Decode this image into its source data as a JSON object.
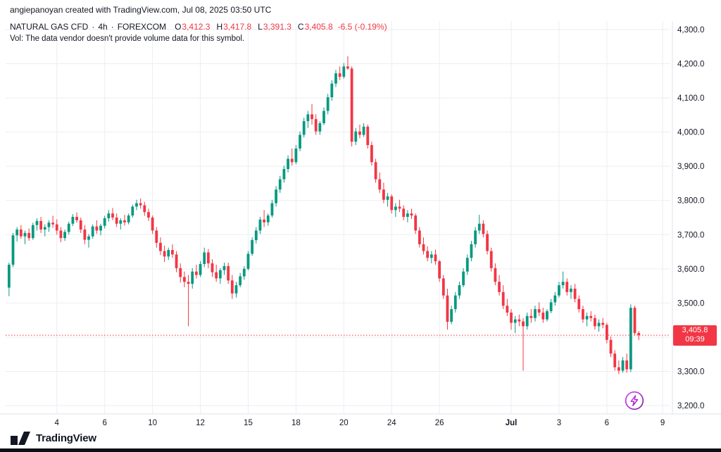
{
  "attribution": {
    "text": "angiepanoyan created with TradingView.com, Jul 08, 2025 03:50 UTC"
  },
  "header": {
    "symbol": "NATURAL GAS CFD",
    "sep": "·",
    "interval": "4h",
    "exchange": "FOREXCOM",
    "ohlc": {
      "o_label": "O",
      "o": "3,412.3",
      "h_label": "H",
      "h": "3,417.8",
      "l_label": "L",
      "l": "3,391.3",
      "c_label": "C",
      "c": "3,405.8",
      "change": "-6.5 (-0.19%)"
    },
    "vol_notice": "Vol: The data vendor doesn't provide volume data for this symbol."
  },
  "footer": {
    "logo_text": "TradingView"
  },
  "icons": {
    "watermark": "lightning-bolt-icon",
    "logo": "tradingview-logo"
  },
  "chart_data": {
    "type": "candlestick",
    "title": "NATURAL GAS CFD · 4h · FOREXCOM",
    "interval": "4h",
    "legend_position": "top-left",
    "grid": true,
    "y_axis": {
      "min": 3200,
      "max": 4300,
      "tick_step": 100,
      "ticks": [
        {
          "v": 4300,
          "label": "4,300.0"
        },
        {
          "v": 4200,
          "label": "4,200.0"
        },
        {
          "v": 4100,
          "label": "4,100.0"
        },
        {
          "v": 4000,
          "label": "4,000.0"
        },
        {
          "v": 3900,
          "label": "3,900.0"
        },
        {
          "v": 3800,
          "label": "3,800.0"
        },
        {
          "v": 3700,
          "label": "3,700.0"
        },
        {
          "v": 3600,
          "label": "3,600.0"
        },
        {
          "v": 3500,
          "label": "3,500.0"
        },
        {
          "v": 3400,
          "label": "3,400.0"
        },
        {
          "v": 3300,
          "label": "3,300.0"
        },
        {
          "v": 3200,
          "label": "3,200.0"
        }
      ]
    },
    "x_ticks": [
      {
        "label": "4",
        "i": 12
      },
      {
        "label": "6",
        "i": 24
      },
      {
        "label": "10",
        "i": 36
      },
      {
        "label": "12",
        "i": 48
      },
      {
        "label": "15",
        "i": 60
      },
      {
        "label": "18",
        "i": 72
      },
      {
        "label": "20",
        "i": 84
      },
      {
        "label": "24",
        "i": 96
      },
      {
        "label": "26",
        "i": 108
      },
      {
        "label": "Jul",
        "i": 126,
        "bold": true
      },
      {
        "label": "3",
        "i": 138
      },
      {
        "label": "6",
        "i": 150
      },
      {
        "label": "9",
        "i": 164
      }
    ],
    "current": {
      "price": 3405.8,
      "price_label": "3,405.8",
      "countdown": "09:39",
      "direction": "down"
    },
    "colors": {
      "up": "#089981",
      "down": "#F23645",
      "grid": "#ECEEF1",
      "axis_text": "#131722",
      "badge": "#F23645",
      "axis_border": "#E0E3EB"
    },
    "candles": [
      [
        3545,
        3618,
        3520,
        3612
      ],
      [
        3612,
        3705,
        3605,
        3698
      ],
      [
        3698,
        3722,
        3680,
        3715
      ],
      [
        3715,
        3728,
        3688,
        3695
      ],
      [
        3695,
        3712,
        3672,
        3705
      ],
      [
        3705,
        3718,
        3682,
        3690
      ],
      [
        3690,
        3735,
        3685,
        3728
      ],
      [
        3728,
        3748,
        3712,
        3740
      ],
      [
        3740,
        3752,
        3705,
        3715
      ],
      [
        3715,
        3730,
        3695,
        3722
      ],
      [
        3722,
        3742,
        3708,
        3735
      ],
      [
        3735,
        3755,
        3720,
        3730
      ],
      [
        3730,
        3745,
        3700,
        3712
      ],
      [
        3712,
        3722,
        3678,
        3690
      ],
      [
        3690,
        3715,
        3682,
        3708
      ],
      [
        3708,
        3738,
        3700,
        3732
      ],
      [
        3732,
        3760,
        3725,
        3752
      ],
      [
        3752,
        3765,
        3735,
        3742
      ],
      [
        3742,
        3750,
        3705,
        3715
      ],
      [
        3715,
        3728,
        3672,
        3685
      ],
      [
        3685,
        3702,
        3662,
        3695
      ],
      [
        3695,
        3730,
        3688,
        3724
      ],
      [
        3724,
        3742,
        3702,
        3712
      ],
      [
        3712,
        3732,
        3698,
        3726
      ],
      [
        3726,
        3755,
        3718,
        3748
      ],
      [
        3748,
        3772,
        3738,
        3762
      ],
      [
        3762,
        3778,
        3742,
        3750
      ],
      [
        3750,
        3762,
        3722,
        3732
      ],
      [
        3732,
        3748,
        3715,
        3742
      ],
      [
        3742,
        3758,
        3726,
        3736
      ],
      [
        3736,
        3762,
        3730,
        3756
      ],
      [
        3756,
        3788,
        3750,
        3782
      ],
      [
        3782,
        3802,
        3772,
        3792
      ],
      [
        3792,
        3806,
        3776,
        3786
      ],
      [
        3786,
        3796,
        3755,
        3766
      ],
      [
        3766,
        3776,
        3740,
        3750
      ],
      [
        3750,
        3756,
        3702,
        3712
      ],
      [
        3712,
        3722,
        3662,
        3676
      ],
      [
        3676,
        3692,
        3640,
        3652
      ],
      [
        3652,
        3668,
        3620,
        3636
      ],
      [
        3636,
        3662,
        3626,
        3655
      ],
      [
        3655,
        3672,
        3632,
        3642
      ],
      [
        3642,
        3652,
        3590,
        3602
      ],
      [
        3602,
        3616,
        3560,
        3576
      ],
      [
        3576,
        3592,
        3546,
        3562
      ],
      [
        3562,
        3582,
        3432,
        3556
      ],
      [
        3556,
        3602,
        3542,
        3592
      ],
      [
        3592,
        3612,
        3572,
        3582
      ],
      [
        3582,
        3622,
        3576,
        3614
      ],
      [
        3614,
        3662,
        3605,
        3648
      ],
      [
        3648,
        3658,
        3602,
        3616
      ],
      [
        3616,
        3628,
        3576,
        3590
      ],
      [
        3590,
        3612,
        3562,
        3572
      ],
      [
        3572,
        3602,
        3556,
        3596
      ],
      [
        3596,
        3618,
        3582,
        3608
      ],
      [
        3608,
        3618,
        3556,
        3566
      ],
      [
        3566,
        3582,
        3512,
        3528
      ],
      [
        3528,
        3562,
        3516,
        3552
      ],
      [
        3552,
        3588,
        3546,
        3578
      ],
      [
        3578,
        3608,
        3568,
        3600
      ],
      [
        3600,
        3652,
        3595,
        3644
      ],
      [
        3644,
        3692,
        3638,
        3684
      ],
      [
        3684,
        3722,
        3674,
        3712
      ],
      [
        3712,
        3752,
        3702,
        3744
      ],
      [
        3744,
        3772,
        3722,
        3736
      ],
      [
        3736,
        3762,
        3726,
        3756
      ],
      [
        3756,
        3802,
        3750,
        3792
      ],
      [
        3792,
        3842,
        3782,
        3832
      ],
      [
        3832,
        3872,
        3822,
        3862
      ],
      [
        3862,
        3902,
        3852,
        3892
      ],
      [
        3892,
        3932,
        3882,
        3922
      ],
      [
        3922,
        3952,
        3902,
        3912
      ],
      [
        3912,
        3962,
        3906,
        3952
      ],
      [
        3952,
        4002,
        3944,
        3992
      ],
      [
        3992,
        4042,
        3984,
        4032
      ],
      [
        4032,
        4062,
        4012,
        4052
      ],
      [
        4052,
        4082,
        4022,
        4038
      ],
      [
        4038,
        4052,
        3992,
        4002
      ],
      [
        4002,
        4032,
        3992,
        4026
      ],
      [
        4026,
        4072,
        4020,
        4062
      ],
      [
        4062,
        4112,
        4052,
        4102
      ],
      [
        4102,
        4152,
        4092,
        4142
      ],
      [
        4142,
        4182,
        4132,
        4172
      ],
      [
        4172,
        4192,
        4152,
        4162
      ],
      [
        4162,
        4202,
        4156,
        4192
      ],
      [
        4192,
        4222,
        4182,
        4186
      ],
      [
        4186,
        4192,
        3958,
        3972
      ],
      [
        3972,
        4012,
        3962,
        4002
      ],
      [
        4002,
        4022,
        3982,
        3992
      ],
      [
        3992,
        4026,
        3986,
        4016
      ],
      [
        4016,
        4022,
        3952,
        3962
      ],
      [
        3962,
        3972,
        3902,
        3912
      ],
      [
        3912,
        3922,
        3852,
        3862
      ],
      [
        3862,
        3882,
        3822,
        3832
      ],
      [
        3832,
        3852,
        3792,
        3802
      ],
      [
        3802,
        3822,
        3782,
        3812
      ],
      [
        3812,
        3818,
        3762,
        3772
      ],
      [
        3772,
        3792,
        3752,
        3782
      ],
      [
        3782,
        3802,
        3766,
        3776
      ],
      [
        3776,
        3786,
        3742,
        3752
      ],
      [
        3752,
        3772,
        3736,
        3762
      ],
      [
        3762,
        3776,
        3746,
        3756
      ],
      [
        3756,
        3762,
        3702,
        3712
      ],
      [
        3712,
        3722,
        3662,
        3672
      ],
      [
        3672,
        3692,
        3642,
        3652
      ],
      [
        3652,
        3666,
        3622,
        3632
      ],
      [
        3632,
        3652,
        3616,
        3642
      ],
      [
        3642,
        3656,
        3612,
        3622
      ],
      [
        3622,
        3626,
        3562,
        3572
      ],
      [
        3572,
        3582,
        3512,
        3522
      ],
      [
        3522,
        3542,
        3422,
        3445
      ],
      [
        3445,
        3492,
        3438,
        3482
      ],
      [
        3482,
        3532,
        3472,
        3522
      ],
      [
        3522,
        3562,
        3512,
        3552
      ],
      [
        3552,
        3602,
        3546,
        3592
      ],
      [
        3592,
        3642,
        3582,
        3632
      ],
      [
        3632,
        3682,
        3622,
        3672
      ],
      [
        3672,
        3722,
        3662,
        3712
      ],
      [
        3712,
        3758,
        3702,
        3732
      ],
      [
        3732,
        3742,
        3692,
        3702
      ],
      [
        3702,
        3712,
        3642,
        3652
      ],
      [
        3652,
        3662,
        3592,
        3602
      ],
      [
        3602,
        3616,
        3552,
        3562
      ],
      [
        3562,
        3582,
        3522,
        3532
      ],
      [
        3532,
        3552,
        3482,
        3492
      ],
      [
        3492,
        3512,
        3462,
        3472
      ],
      [
        3472,
        3482,
        3422,
        3442
      ],
      [
        3442,
        3462,
        3412,
        3452
      ],
      [
        3452,
        3466,
        3432,
        3446
      ],
      [
        3446,
        3456,
        3302,
        3432
      ],
      [
        3432,
        3472,
        3422,
        3462
      ],
      [
        3462,
        3482,
        3442,
        3456
      ],
      [
        3456,
        3492,
        3446,
        3482
      ],
      [
        3482,
        3502,
        3462,
        3472
      ],
      [
        3472,
        3486,
        3442,
        3452
      ],
      [
        3452,
        3482,
        3446,
        3476
      ],
      [
        3476,
        3512,
        3470,
        3502
      ],
      [
        3502,
        3532,
        3492,
        3522
      ],
      [
        3522,
        3562,
        3516,
        3552
      ],
      [
        3552,
        3592,
        3542,
        3562
      ],
      [
        3562,
        3572,
        3522,
        3532
      ],
      [
        3532,
        3552,
        3512,
        3542
      ],
      [
        3542,
        3556,
        3502,
        3512
      ],
      [
        3512,
        3522,
        3472,
        3482
      ],
      [
        3482,
        3492,
        3442,
        3452
      ],
      [
        3452,
        3472,
        3432,
        3462
      ],
      [
        3462,
        3476,
        3446,
        3456
      ],
      [
        3456,
        3466,
        3422,
        3432
      ],
      [
        3432,
        3452,
        3416,
        3442
      ],
      [
        3442,
        3456,
        3426,
        3436
      ],
      [
        3436,
        3442,
        3382,
        3392
      ],
      [
        3392,
        3402,
        3342,
        3352
      ],
      [
        3352,
        3362,
        3302,
        3312
      ],
      [
        3312,
        3332,
        3292,
        3302
      ],
      [
        3302,
        3342,
        3296,
        3332
      ],
      [
        3332,
        3352,
        3296,
        3306
      ],
      [
        3306,
        3496,
        3298,
        3486
      ],
      [
        3486,
        3492,
        3406,
        3412
      ],
      [
        3412.3,
        3417.8,
        3391.3,
        3405.8
      ]
    ]
  }
}
